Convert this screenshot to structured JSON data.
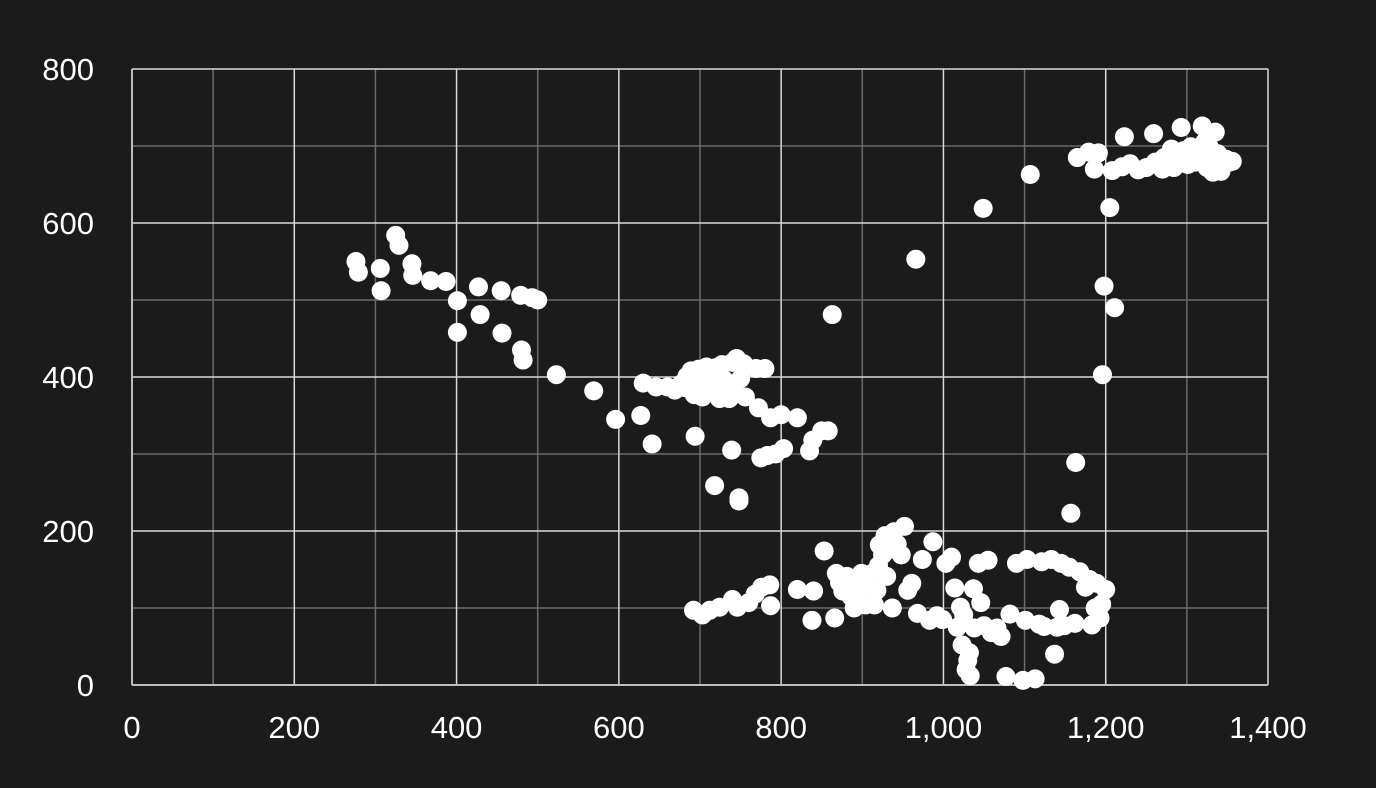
{
  "theme": {
    "background": "#1b1b1b",
    "grid_major": "#d9d9d9",
    "grid_minor": "#6a6a6a",
    "axis": "#bdbdbd",
    "marker": "#ffffff",
    "text": "#ffffff"
  },
  "chart_data": {
    "type": "scatter",
    "title": "",
    "xlabel": "",
    "ylabel": "",
    "xlim": [
      0,
      1400
    ],
    "ylim": [
      0,
      800
    ],
    "x_ticks": [
      0,
      200,
      400,
      600,
      800,
      1000,
      1200,
      1400
    ],
    "x_tick_labels": [
      "0",
      "200",
      "400",
      "600",
      "800",
      "1,000",
      "1,200",
      "1,400"
    ],
    "y_ticks": [
      0,
      200,
      400,
      600,
      800
    ],
    "y_tick_labels": [
      "0",
      "200",
      "400",
      "600",
      "800"
    ],
    "x_minor_step": 100,
    "y_minor_step": 100,
    "grid": true,
    "legend": "none",
    "series": [
      {
        "points": [
          [
            276,
            550
          ],
          [
            279,
            536
          ],
          [
            306,
            541
          ],
          [
            307,
            512
          ],
          [
            325,
            584
          ],
          [
            329,
            571
          ],
          [
            345,
            547
          ],
          [
            346,
            532
          ],
          [
            368,
            525
          ],
          [
            387,
            524
          ],
          [
            401,
            499
          ],
          [
            401,
            458
          ],
          [
            427,
            517
          ],
          [
            429,
            481
          ],
          [
            455,
            512
          ],
          [
            456,
            457
          ],
          [
            479,
            506
          ],
          [
            480,
            435
          ],
          [
            482,
            422
          ],
          [
            493,
            503
          ],
          [
            500,
            500
          ],
          [
            523,
            403
          ],
          [
            569,
            382
          ],
          [
            596,
            345
          ],
          [
            627,
            350
          ],
          [
            630,
            392
          ],
          [
            641,
            313
          ],
          [
            646,
            387
          ],
          [
            660,
            387
          ],
          [
            669,
            383
          ],
          [
            677,
            391
          ],
          [
            682,
            386
          ],
          [
            684,
            401
          ],
          [
            689,
            408
          ],
          [
            690,
            392
          ],
          [
            693,
            377
          ],
          [
            694,
            323
          ],
          [
            697,
            387
          ],
          [
            698,
            410
          ],
          [
            703,
            374
          ],
          [
            708,
            413
          ],
          [
            711,
            399
          ],
          [
            714,
            408
          ],
          [
            716,
            390
          ],
          [
            718,
            259
          ],
          [
            719,
            412
          ],
          [
            724,
            372
          ],
          [
            727,
            416
          ],
          [
            729,
            397
          ],
          [
            733,
            387
          ],
          [
            736,
            372
          ],
          [
            739,
            305
          ],
          [
            740,
            419
          ],
          [
            742,
            382
          ],
          [
            745,
            424
          ],
          [
            748,
            243
          ],
          [
            748,
            239
          ],
          [
            750,
            398
          ],
          [
            754,
            417
          ],
          [
            756,
            374
          ],
          [
            769,
            411
          ],
          [
            772,
            360
          ],
          [
            775,
            295
          ],
          [
            780,
            411
          ],
          [
            783,
            298
          ],
          [
            787,
            347
          ],
          [
            793,
            300
          ],
          [
            800,
            351
          ],
          [
            803,
            307
          ],
          [
            820,
            347
          ],
          [
            835,
            304
          ],
          [
            839,
            318
          ],
          [
            850,
            330
          ],
          [
            858,
            330
          ],
          [
            863,
            481
          ],
          [
            692,
            97
          ],
          [
            703,
            91
          ],
          [
            712,
            97
          ],
          [
            724,
            101
          ],
          [
            740,
            111
          ],
          [
            746,
            101
          ],
          [
            760,
            107
          ],
          [
            768,
            118
          ],
          [
            776,
            127
          ],
          [
            786,
            130
          ],
          [
            787,
            103
          ],
          [
            820,
            124
          ],
          [
            840,
            122
          ],
          [
            838,
            84
          ],
          [
            853,
            174
          ],
          [
            866,
            87
          ],
          [
            868,
            145
          ],
          [
            872,
            133
          ],
          [
            876,
            122
          ],
          [
            881,
            141
          ],
          [
            886,
            115
          ],
          [
            890,
            100
          ],
          [
            893,
            130
          ],
          [
            897,
            116
          ],
          [
            899,
            145
          ],
          [
            904,
            104
          ],
          [
            907,
            130
          ],
          [
            912,
            145
          ],
          [
            915,
            104
          ],
          [
            918,
            123
          ],
          [
            920,
            155
          ],
          [
            921,
            182
          ],
          [
            925,
            169
          ],
          [
            928,
            194
          ],
          [
            930,
            141
          ],
          [
            933,
            176
          ],
          [
            937,
            100
          ],
          [
            939,
            199
          ],
          [
            943,
            183
          ],
          [
            948,
            169
          ],
          [
            952,
            206
          ],
          [
            956,
            123
          ],
          [
            961,
            132
          ],
          [
            966,
            553
          ],
          [
            968,
            93
          ],
          [
            974,
            163
          ],
          [
            983,
            84
          ],
          [
            987,
            186
          ],
          [
            992,
            90
          ],
          [
            999,
            85
          ],
          [
            1003,
            158
          ],
          [
            1010,
            166
          ],
          [
            1014,
            126
          ],
          [
            1017,
            75
          ],
          [
            1021,
            101
          ],
          [
            1023,
            52
          ],
          [
            1025,
            91
          ],
          [
            1028,
            20
          ],
          [
            1030,
            32
          ],
          [
            1032,
            42
          ],
          [
            1033,
            12
          ],
          [
            1037,
            125
          ],
          [
            1038,
            74
          ],
          [
            1043,
            158
          ],
          [
            1046,
            107
          ],
          [
            1049,
            619
          ],
          [
            1050,
            77
          ],
          [
            1055,
            162
          ],
          [
            1059,
            68
          ],
          [
            1066,
            74
          ],
          [
            1071,
            63
          ],
          [
            1077,
            11
          ],
          [
            1082,
            92
          ],
          [
            1090,
            158
          ],
          [
            1098,
            6
          ],
          [
            1101,
            84
          ],
          [
            1103,
            163
          ],
          [
            1107,
            663
          ],
          [
            1113,
            8
          ],
          [
            1118,
            79
          ],
          [
            1121,
            160
          ],
          [
            1124,
            76
          ],
          [
            1133,
            163
          ],
          [
            1137,
            40
          ],
          [
            1140,
            75
          ],
          [
            1143,
            98
          ],
          [
            1145,
            158
          ],
          [
            1149,
            77
          ],
          [
            1155,
            153
          ],
          [
            1157,
            223
          ],
          [
            1162,
            80
          ],
          [
            1163,
            289
          ],
          [
            1165,
            685
          ],
          [
            1168,
            147
          ],
          [
            1175,
            127
          ],
          [
            1179,
            692
          ],
          [
            1180,
            137
          ],
          [
            1183,
            78
          ],
          [
            1186,
            670
          ],
          [
            1187,
            100
          ],
          [
            1189,
            132
          ],
          [
            1191,
            691
          ],
          [
            1193,
            87
          ],
          [
            1195,
            105
          ],
          [
            1196,
            403
          ],
          [
            1198,
            518
          ],
          [
            1200,
            124
          ],
          [
            1205,
            620
          ],
          [
            1208,
            668
          ],
          [
            1211,
            490
          ],
          [
            1220,
            673
          ],
          [
            1223,
            712
          ],
          [
            1230,
            677
          ],
          [
            1240,
            669
          ],
          [
            1250,
            672
          ],
          [
            1259,
            716
          ],
          [
            1261,
            679
          ],
          [
            1270,
            670
          ],
          [
            1272,
            685
          ],
          [
            1281,
            696
          ],
          [
            1284,
            672
          ],
          [
            1290,
            681
          ],
          [
            1293,
            724
          ],
          [
            1296,
            694
          ],
          [
            1301,
            676
          ],
          [
            1305,
            699
          ],
          [
            1310,
            679
          ],
          [
            1314,
            688
          ],
          [
            1319,
            726
          ],
          [
            1322,
            705
          ],
          [
            1325,
            672
          ],
          [
            1327,
            700
          ],
          [
            1330,
            682
          ],
          [
            1332,
            666
          ],
          [
            1335,
            718
          ],
          [
            1338,
            690
          ],
          [
            1342,
            667
          ],
          [
            1348,
            683
          ],
          [
            1352,
            679
          ],
          [
            1356,
            680
          ]
        ]
      }
    ]
  }
}
